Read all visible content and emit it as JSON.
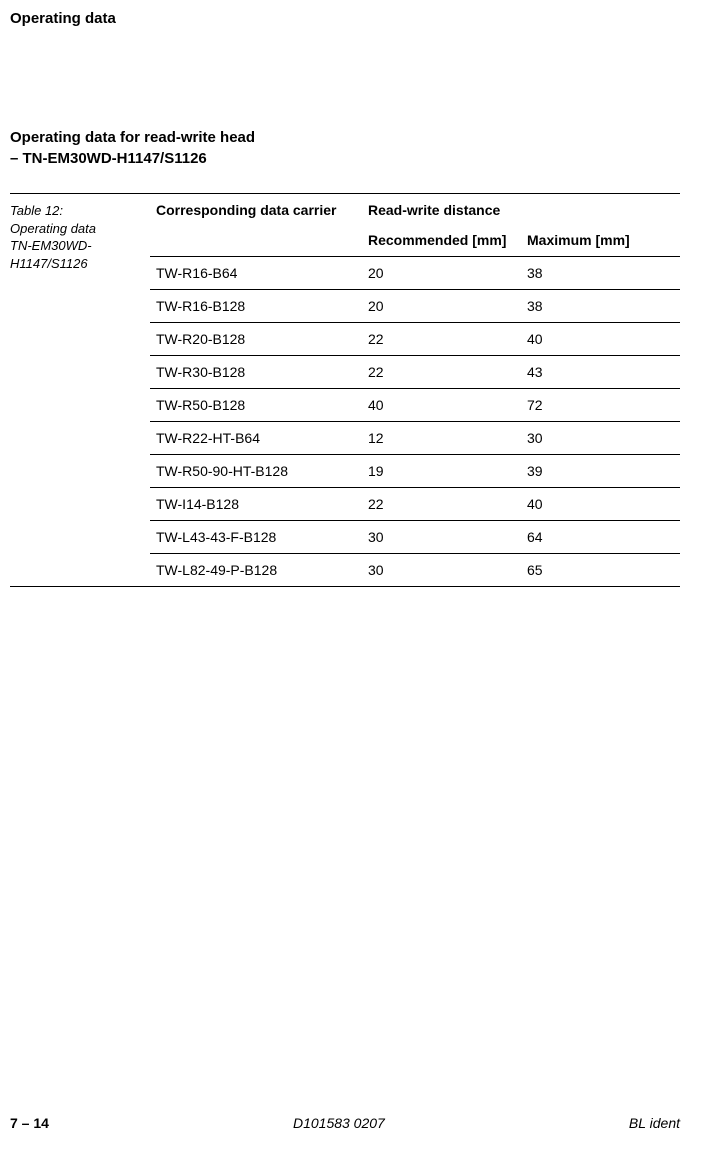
{
  "header": {
    "page_title": "Operating data"
  },
  "section": {
    "title_line1": "Operating data for read-write head",
    "title_line2": "– TN-EM30WD-H1147/S1126"
  },
  "caption": {
    "line1": "Table 12:",
    "line2": "Operating data",
    "line3": "TN-EM30WD-H1147/S1126"
  },
  "table": {
    "type": "table",
    "columns": {
      "carrier": "Corresponding data carrier",
      "spanner": "Read-write distance",
      "recommended": "Recommended [mm]",
      "maximum": "Maximum [mm]"
    },
    "rows": [
      {
        "carrier": "TW-R16-B64",
        "rec": "20",
        "max": "38"
      },
      {
        "carrier": "TW-R16-B128",
        "rec": "20",
        "max": "38"
      },
      {
        "carrier": "TW-R20-B128",
        "rec": "22",
        "max": "40"
      },
      {
        "carrier": "TW-R30-B128",
        "rec": "22",
        "max": "43"
      },
      {
        "carrier": "TW-R50-B128",
        "rec": "40",
        "max": "72"
      },
      {
        "carrier": "TW-R22-HT-B64",
        "rec": "12",
        "max": "30"
      },
      {
        "carrier": "TW-R50-90-HT-B128",
        "rec": "19",
        "max": "39"
      },
      {
        "carrier": "TW-I14-B128",
        "rec": "22",
        "max": "40"
      },
      {
        "carrier": "TW-L43-43-F-B128",
        "rec": "30",
        "max": "64"
      },
      {
        "carrier": "TW-L82-49-P-B128",
        "rec": "30",
        "max": "65"
      }
    ],
    "col_widths_pct": [
      40,
      30,
      30
    ],
    "border_color": "#000000",
    "header_fontsize": 14,
    "cell_fontsize": 14
  },
  "footer": {
    "page": "7 – 14",
    "doc": "D101583 0207",
    "brand": "BL ident"
  },
  "colors": {
    "text": "#000000",
    "background": "#ffffff",
    "rule": "#000000"
  }
}
